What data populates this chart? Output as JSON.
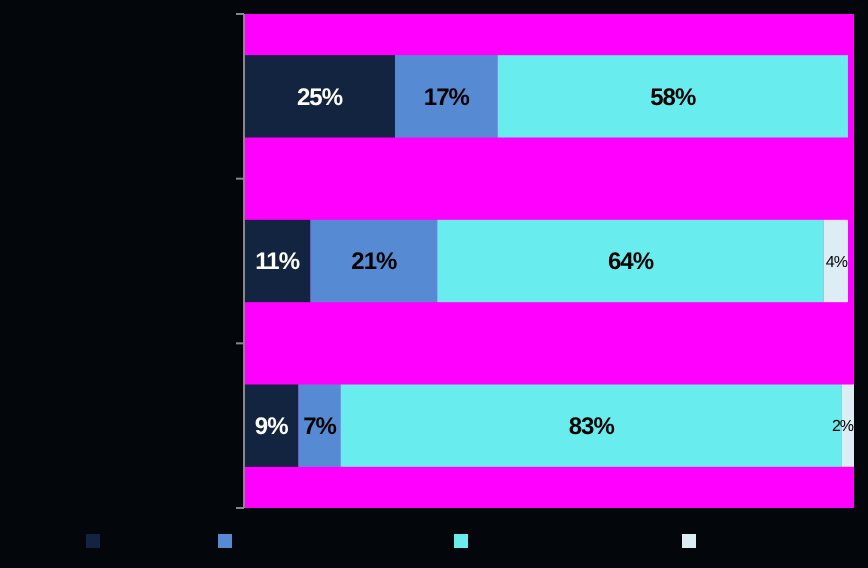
{
  "chart_data": {
    "type": "bar",
    "orientation": "horizontal",
    "stacked": true,
    "categories": [
      null,
      null,
      null
    ],
    "series": [
      {
        "color": "#12243f",
        "values": [
          25,
          11,
          9
        ],
        "value_labels": [
          "25%",
          "11%",
          "9%"
        ]
      },
      {
        "color": "#568bd4",
        "values": [
          17,
          21,
          7
        ],
        "value_labels": [
          "17%",
          "21%",
          "7%"
        ]
      },
      {
        "color": "#68ecee",
        "values": [
          58,
          64,
          83
        ],
        "value_labels": [
          "58%",
          "64%",
          "83%"
        ]
      },
      {
        "color": "#dcedf3",
        "values": [
          0,
          4,
          2
        ],
        "value_labels": [
          null,
          "4%",
          "2%"
        ]
      }
    ]
  }
}
